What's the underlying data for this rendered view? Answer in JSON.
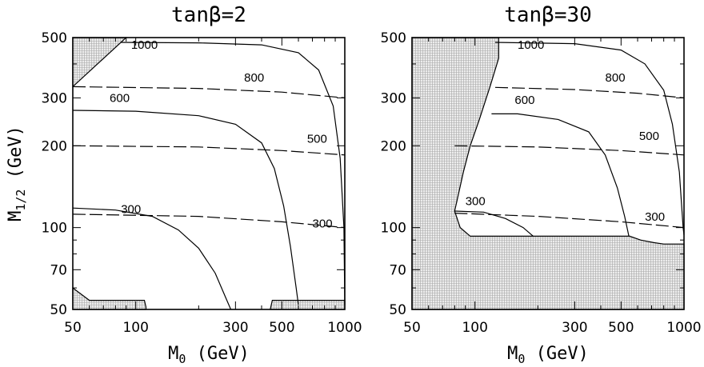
{
  "chart_data": [
    {
      "type": "line",
      "title": "tanβ=2",
      "xlabel": "M0 (GeV)",
      "ylabel": "M1/2 (GeV)",
      "xscale": "log",
      "yscale": "log",
      "xlim": [
        50,
        1000
      ],
      "ylim": [
        50,
        500
      ],
      "x_ticklabels": [
        "50",
        "100",
        "300",
        "500",
        "1000"
      ],
      "y_ticklabels": [
        "500",
        "300",
        "200",
        "100",
        "70",
        "50"
      ],
      "series": [
        {
          "name": "300",
          "style": "solid",
          "label_at": [
            85,
            113
          ],
          "points": [
            [
              50,
              118
            ],
            [
              80,
              116
            ],
            [
              120,
              110
            ],
            [
              160,
              98
            ],
            [
              200,
              84
            ],
            [
              240,
              68
            ],
            [
              270,
              55
            ],
            [
              285,
              50
            ]
          ]
        },
        {
          "name": "600",
          "style": "solid",
          "label_at": [
            75,
            290
          ],
          "points": [
            [
              50,
              270
            ],
            [
              100,
              268
            ],
            [
              200,
              258
            ],
            [
              300,
              240
            ],
            [
              400,
              205
            ],
            [
              460,
              165
            ],
            [
              510,
              120
            ],
            [
              550,
              85
            ],
            [
              585,
              60
            ],
            [
              600,
              52
            ]
          ]
        },
        {
          "name": "1000",
          "style": "solid",
          "label_at": [
            95,
            455
          ],
          "points": [
            [
              85,
              480
            ],
            [
              200,
              478
            ],
            [
              400,
              470
            ],
            [
              600,
              440
            ],
            [
              750,
              380
            ],
            [
              880,
              280
            ],
            [
              950,
              180
            ],
            [
              990,
              100
            ],
            [
              1000,
              52
            ]
          ]
        },
        {
          "name": "300",
          "style": "dashed",
          "label_at": [
            700,
            100
          ],
          "points": [
            [
              50,
              112
            ],
            [
              200,
              110
            ],
            [
              500,
              105
            ],
            [
              1000,
              100
            ]
          ]
        },
        {
          "name": "500",
          "style": "dashed",
          "label_at": [
            660,
            205
          ],
          "points": [
            [
              50,
              200
            ],
            [
              200,
              198
            ],
            [
              500,
              192
            ],
            [
              1000,
              185
            ]
          ]
        },
        {
          "name": "800",
          "style": "dashed",
          "label_at": [
            330,
            345
          ],
          "points": [
            [
              50,
              330
            ],
            [
              200,
              325
            ],
            [
              500,
              315
            ],
            [
              1000,
              300
            ]
          ]
        }
      ],
      "excluded_regions": [
        [
          [
            50,
            500
          ],
          [
            90,
            500
          ],
          [
            50,
            330
          ]
        ],
        [
          [
            50,
            60
          ],
          [
            60,
            54
          ],
          [
            110,
            54
          ],
          [
            112,
            51
          ],
          [
            112,
            50
          ],
          [
            50,
            50
          ]
        ],
        [
          [
            440,
            50
          ],
          [
            450,
            54
          ],
          [
            1000,
            54
          ],
          [
            1000,
            50
          ]
        ]
      ]
    },
    {
      "type": "line",
      "title": "tanβ=30",
      "xlabel": "M0 (GeV)",
      "ylabel": "",
      "xscale": "log",
      "yscale": "log",
      "xlim": [
        50,
        1000
      ],
      "ylim": [
        50,
        500
      ],
      "x_ticklabels": [
        "50",
        "100",
        "300",
        "500",
        "1000"
      ],
      "y_ticklabels": [
        "500",
        "300",
        "200",
        "100",
        "70",
        "50"
      ],
      "series": [
        {
          "name": "300",
          "style": "solid",
          "label_at": [
            90,
            121
          ],
          "points": [
            [
              80,
              115
            ],
            [
              110,
              114
            ],
            [
              140,
              108
            ],
            [
              170,
              100
            ],
            [
              190,
              93
            ]
          ]
        },
        {
          "name": "600",
          "style": "solid",
          "label_at": [
            155,
            285
          ],
          "points": [
            [
              120,
              262
            ],
            [
              160,
              262
            ],
            [
              250,
              250
            ],
            [
              350,
              225
            ],
            [
              420,
              185
            ],
            [
              480,
              140
            ],
            [
              520,
              110
            ],
            [
              545,
              93
            ]
          ]
        },
        {
          "name": "1000",
          "style": "solid",
          "label_at": [
            160,
            455
          ],
          "points": [
            [
              125,
              480
            ],
            [
              300,
              475
            ],
            [
              500,
              450
            ],
            [
              650,
              400
            ],
            [
              800,
              320
            ],
            [
              880,
              240
            ],
            [
              950,
              160
            ],
            [
              990,
              100
            ],
            [
              1000,
              94
            ]
          ]
        },
        {
          "name": "300",
          "style": "dashed",
          "label_at": [
            650,
            106
          ],
          "points": [
            [
              80,
              113
            ],
            [
              200,
              110
            ],
            [
              500,
              105
            ],
            [
              1000,
              100
            ]
          ]
        },
        {
          "name": "500",
          "style": "dashed",
          "label_at": [
            610,
            210
          ],
          "points": [
            [
              80,
              200
            ],
            [
              200,
              198
            ],
            [
              500,
              192
            ],
            [
              1000,
              185
            ]
          ]
        },
        {
          "name": "800",
          "style": "dashed",
          "label_at": [
            420,
            345
          ],
          "points": [
            [
              125,
              328
            ],
            [
              300,
              322
            ],
            [
              600,
              312
            ],
            [
              1000,
              300
            ]
          ]
        }
      ],
      "excluded_regions": [
        [
          [
            50,
            50
          ],
          [
            50,
            500
          ],
          [
            130,
            500
          ],
          [
            130,
            420
          ],
          [
            118,
            330
          ],
          [
            105,
            250
          ],
          [
            95,
            200
          ],
          [
            88,
            160
          ],
          [
            82,
            125
          ],
          [
            80,
            115
          ],
          [
            85,
            100
          ],
          [
            95,
            93
          ],
          [
            550,
            93
          ],
          [
            620,
            90
          ],
          [
            720,
            88
          ],
          [
            800,
            87
          ],
          [
            1000,
            87
          ],
          [
            1000,
            50
          ]
        ]
      ]
    }
  ]
}
